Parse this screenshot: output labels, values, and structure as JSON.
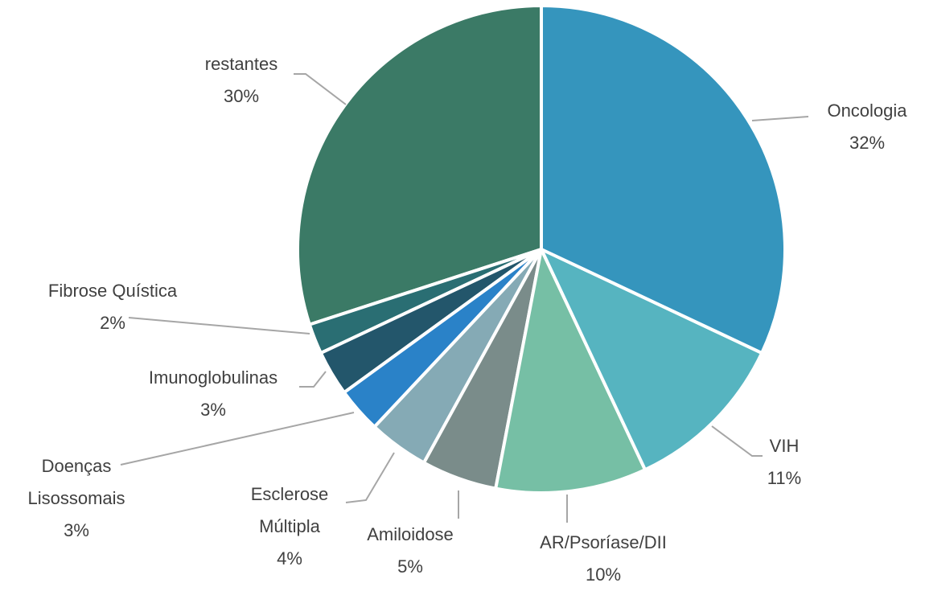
{
  "chart_data": {
    "type": "pie",
    "categories": [
      "Oncologia",
      "VIH",
      "AR/Psoríase/DII",
      "Amiloidose",
      "Esclerose Múltipla",
      "Doenças Lisossomais",
      "Imunoglobulinas",
      "Fibrose Quística",
      "restantes"
    ],
    "values": [
      32,
      11,
      10,
      5,
      4,
      3,
      3,
      2,
      30
    ],
    "value_labels": [
      "32%",
      "11%",
      "10%",
      "5%",
      "4%",
      "3%",
      "3%",
      "2%",
      "30%"
    ],
    "colors": [
      "#3595bd",
      "#56b4c0",
      "#76bfa5",
      "#7a8c8a",
      "#85aab5",
      "#2a82c8",
      "#23566b",
      "#2a6e73",
      "#3b7a66"
    ]
  }
}
